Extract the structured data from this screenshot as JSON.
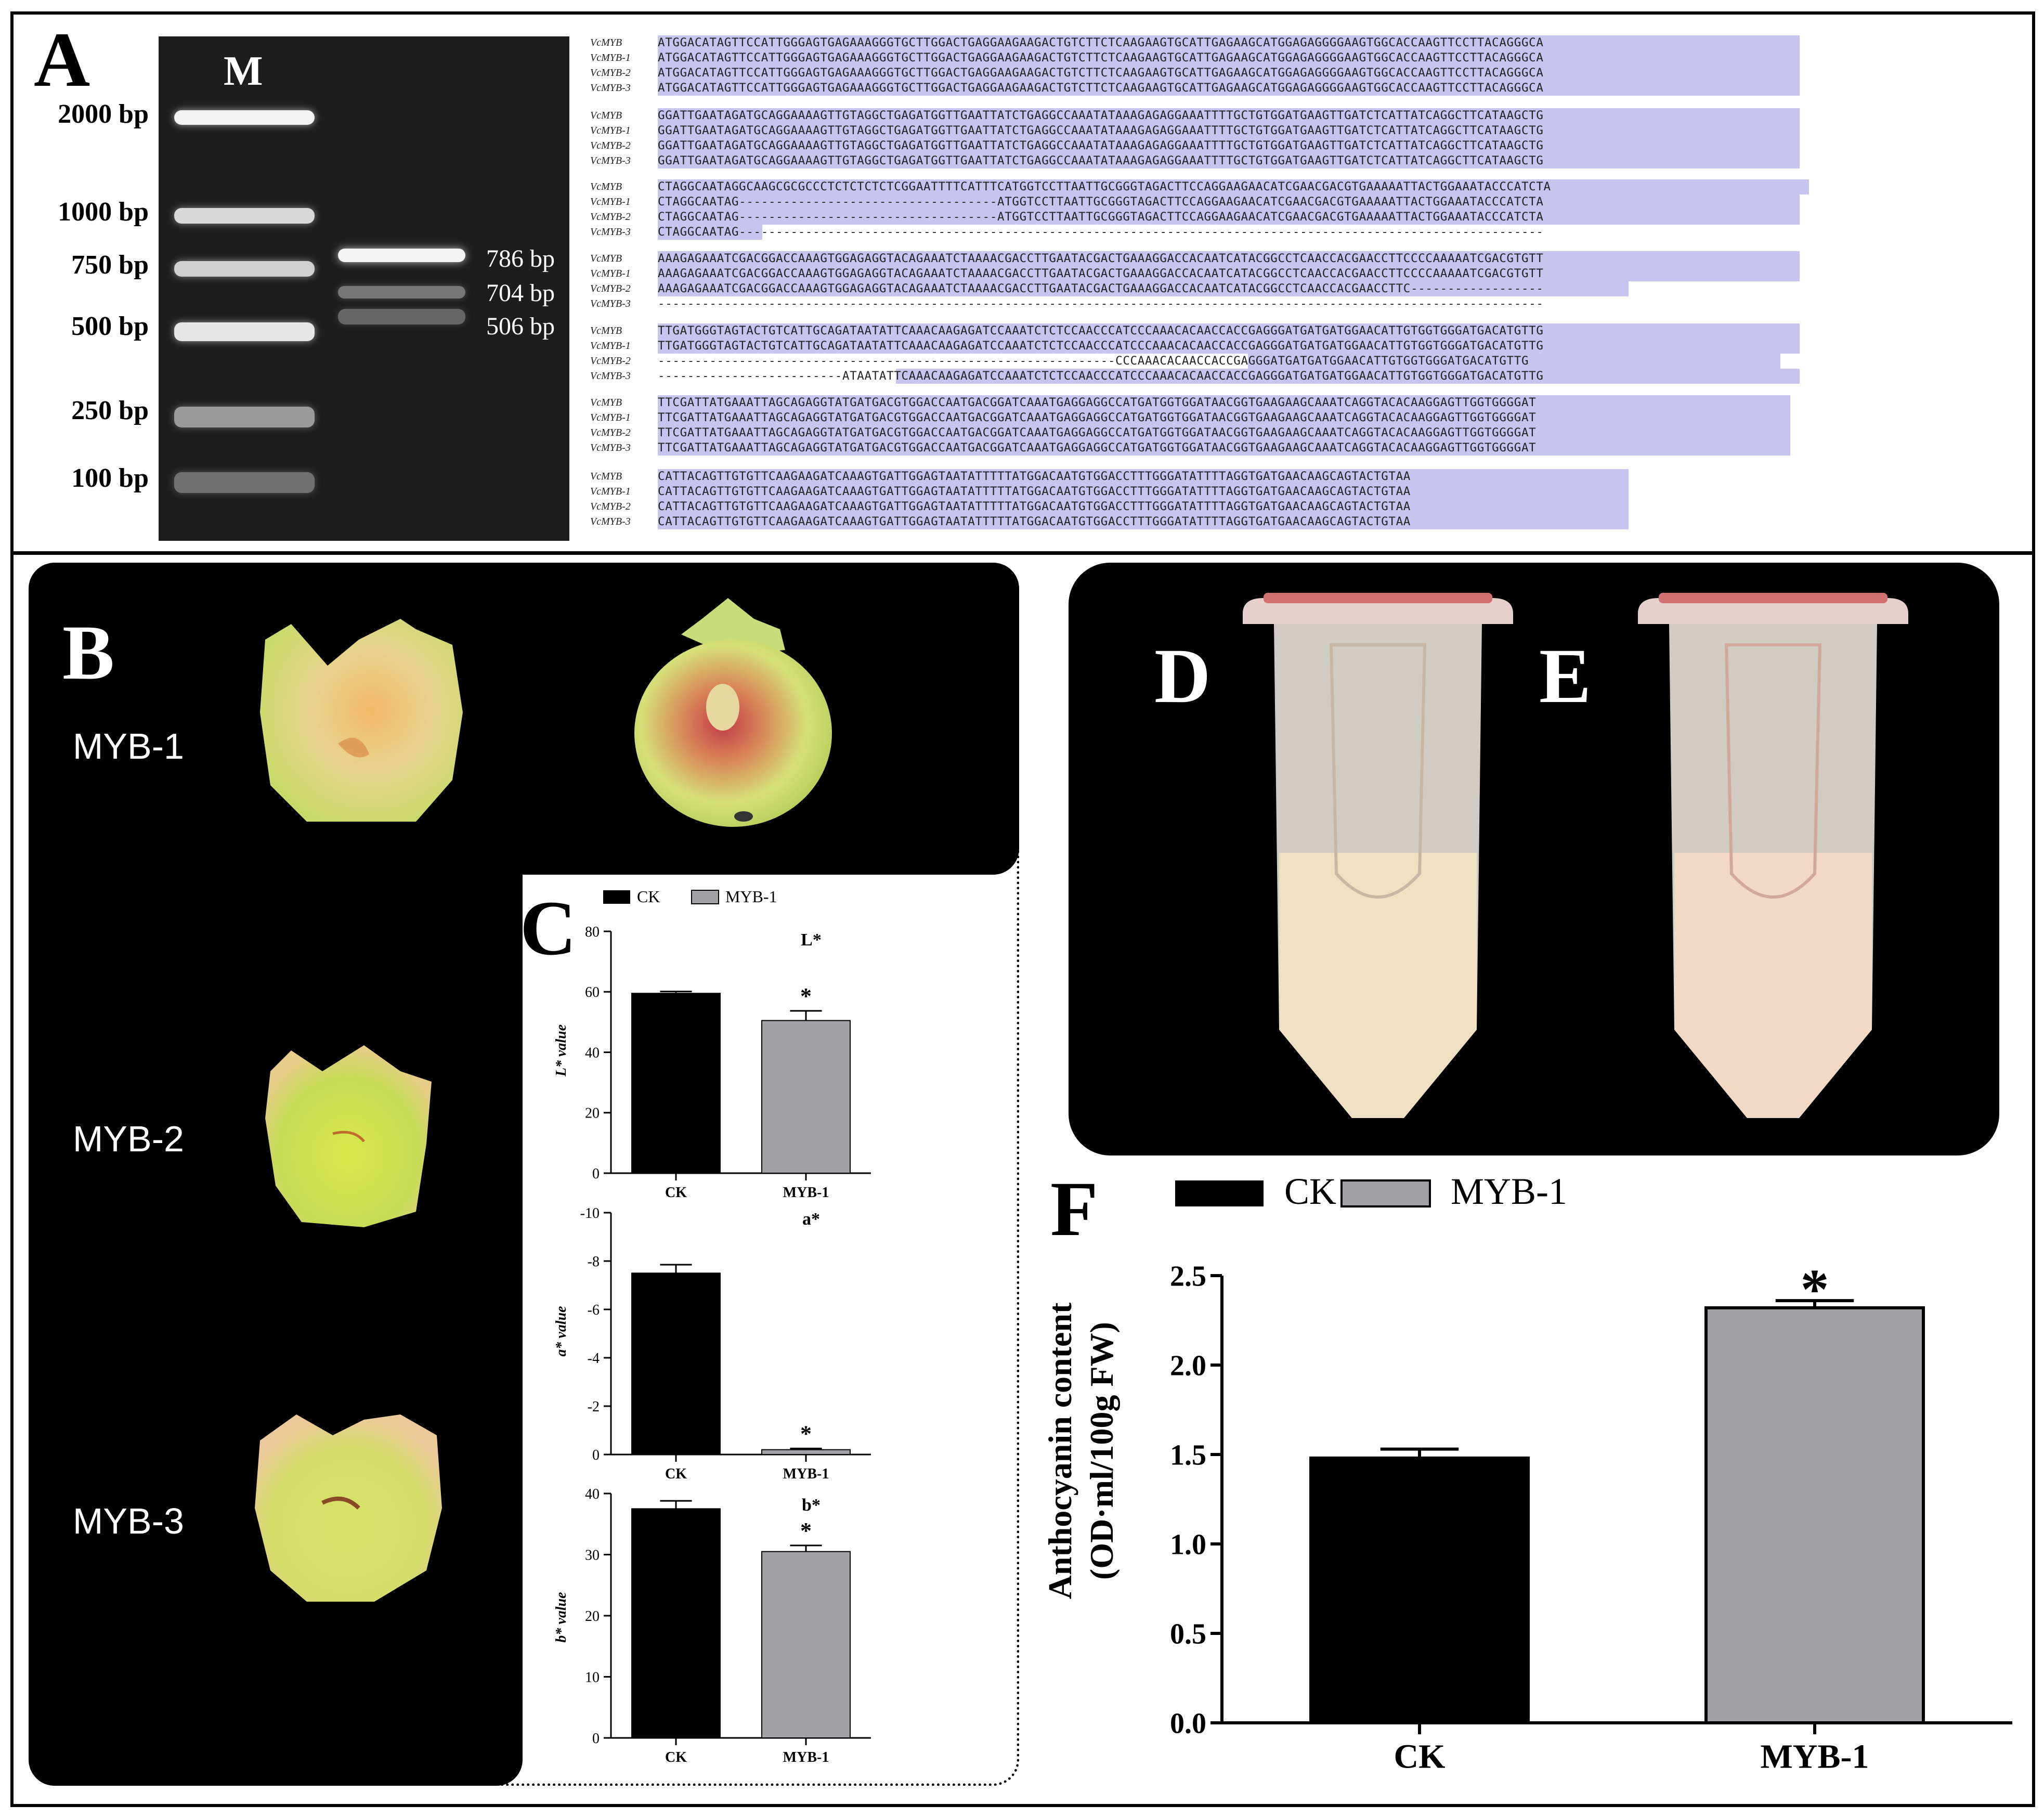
{
  "panels": {
    "A": {
      "label": "A"
    },
    "B": {
      "label": "B",
      "samples": [
        "MYB-1",
        "MYB-2",
        "MYB-3"
      ]
    },
    "C": {
      "label": "C"
    },
    "D": {
      "label": "D"
    },
    "E": {
      "label": "E"
    },
    "F": {
      "label": "F"
    }
  },
  "gel": {
    "marker_lane": "M",
    "ladder": [
      "2000 bp",
      "1000 bp",
      "750 bp",
      "500 bp",
      "250 bp",
      "100 bp"
    ],
    "bands": [
      "786 bp",
      "704 bp",
      "506 bp"
    ]
  },
  "alignment": {
    "names": [
      "VcMYB",
      "VcMYB-1",
      "VcMYB-2",
      "VcMYB-3"
    ],
    "blocks": [
      [
        "ATGGACATAGTTCCATTGGGAGTGAGAAAGGGTGCTTGGACTGAGGAAGAAGACTGTCTTCTCAAGAAGTGCATTGAGAAGCATGGAGAGGGGAAGTGGCACCAAGTTCCTTACAGGGCA",
        "ATGGACATAGTTCCATTGGGAGTGAGAAAGGGTGCTTGGACTGAGGAAGAAGACTGTCTTCTCAAGAAGTGCATTGAGAAGCATGGAGAGGGGAAGTGGCACCAAGTTCCTTACAGGGCA",
        "ATGGACATAGTTCCATTGGGAGTGAGAAAGGGTGCTTGGACTGAGGAAGAAGACTGTCTTCTCAAGAAGTGCATTGAGAAGCATGGAGAGGGGAAGTGGCACCAAGTTCCTTACAGGGCA",
        "ATGGACATAGTTCCATTGGGAGTGAGAAAGGGTGCTTGGACTGAGGAAGAAGACTGTCTTCTCAAGAAGTGCATTGAGAAGCATGGAGAGGGGAAGTGGCACCAAGTTCCTTACAGGGCA"
      ],
      [
        "GGATTGAATAGATGCAGGAAAAGTTGTAGGCTGAGATGGTTGAATTATCTGAGGCCAAATATAAAGAGAGGAAATTTTGCTGTGGATGAAGTTGATCTCATTATCAGGCTTCATAAGCTG",
        "GGATTGAATAGATGCAGGAAAAGTTGTAGGCTGAGATGGTTGAATTATCTGAGGCCAAATATAAAGAGAGGAAATTTTGCTGTGGATGAAGTTGATCTCATTATCAGGCTTCATAAGCTG",
        "GGATTGAATAGATGCAGGAAAAGTTGTAGGCTGAGATGGTTGAATTATCTGAGGCCAAATATAAAGAGAGGAAATTTTGCTGTGGATGAAGTTGATCTCATTATCAGGCTTCATAAGCTG",
        "GGATTGAATAGATGCAGGAAAAGTTGTAGGCTGAGATGGTTGAATTATCTGAGGCCAAATATAAAGAGAGGAAATTTTGCTGTGGATGAAGTTGATCTCATTATCAGGCTTCATAAGCTG"
      ],
      [
        "CTAGGCAATAGGCAAGCGCGCCCTCTCTCTCTCGGAATTTTCATTTCATGGTCCTTAATTGCGGGTAGACTTCCAGGAAGAACATCGAACGACGTGAAAAATTACTGGAAATACCCATCTA",
        "CTAGGCAATAG-----------------------------------ATGGTCCTTAATTGCGGGTAGACTTCCAGGAAGAACATCGAACGACGTGAAAAATTACTGGAAATACCCATCTA",
        "CTAGGCAATAG-----------------------------------ATGGTCCTTAATTGCGGGTAGACTTCCAGGAAGAACATCGAACGACGTGAAAAATTACTGGAAATACCCATCTA",
        "CTAGGCAATAG-------------------------------------------------------------------------------------------------------------"
      ],
      [
        "AAAGAGAAATCGACGGACCAAAGTGGAGAGGTACAGAAATCTAAAACGACCTTGAATACGACTGAAAGGACCACAATCATACGGCCTCAACCACGAACCTTCCCCAAAAATCGACGTGTT",
        "AAAGAGAAATCGACGGACCAAAGTGGAGAGGTACAGAAATCTAAAACGACCTTGAATACGACTGAAAGGACCACAATCATACGGCCTCAACCACGAACCTTCCCCAAAAATCGACGTGTT",
        "AAAGAGAAATCGACGGACCAAAGTGGAGAGGTACAGAAATCTAAAACGACCTTGAATACGACTGAAAGGACCACAATCATACGGCCTCAACCACGAACCTTC------------------",
        "------------------------------------------------------------------------------------------------------------------------"
      ],
      [
        "TTGATGGGTAGTACTGTCATTGCAGATAATATTCAAACAAGAGATCCAAATCTCTCCAACCCATCCCAAACACAACCACCGAGGGATGATGATGGAACATTGTGGTGGGATGACATGTTG",
        "TTGATGGGTAGTACTGTCATTGCAGATAATATTCAAACAAGAGATCCAAATCTCTCCAACCCATCCCAAACACAACCACCGAGGGATGATGATGGAACATTGTGGTGGGATGACATGTTG",
        "--------------------------------------------------------------CCCAAACACAACCACCGAGGGATGATGATGGAACATTGTGGTGGGATGACATGTTG",
        "-------------------------ATAATATTCAAACAAGAGATCCAAATCTCTCCAACCCATCCCAAACACAACCACCGAGGGATGATGATGGAACATTGTGGTGGGATGACATGTTG"
      ],
      [
        "TTCGATTATGAAATTAGCAGAGGTATGATGACGTGGACCAATGACGGATCAAATGAGGAGGCCATGATGGTGGATAACGGTGAAGAAGCAAATCAGGTACACAAGGAGTTGGTGGGGAT",
        "TTCGATTATGAAATTAGCAGAGGTATGATGACGTGGACCAATGACGGATCAAATGAGGAGGCCATGATGGTGGATAACGGTGAAGAAGCAAATCAGGTACACAAGGAGTTGGTGGGGAT",
        "TTCGATTATGAAATTAGCAGAGGTATGATGACGTGGACCAATGACGGATCAAATGAGGAGGCCATGATGGTGGATAACGGTGAAGAAGCAAATCAGGTACACAAGGAGTTGGTGGGGAT",
        "TTCGATTATGAAATTAGCAGAGGTATGATGACGTGGACCAATGACGGATCAAATGAGGAGGCCATGATGGTGGATAACGGTGAAGAAGCAAATCAGGTACACAAGGAGTTGGTGGGGAT"
      ],
      [
        "CATTACAGTTGTGTTCAAGAAGATCAAAGTGATTGGAGTAATATTTTTATGGACAATGTGGACCTTTGGGATATTTTAGGTGATGAACAAGCAGTACTGTAA",
        "CATTACAGTTGTGTTCAAGAAGATCAAAGTGATTGGAGTAATATTTTTATGGACAATGTGGACCTTTGGGATATTTTAGGTGATGAACAAGCAGTACTGTAA",
        "CATTACAGTTGTGTTCAAGAAGATCAAAGTGATTGGAGTAATATTTTTATGGACAATGTGGACCTTTGGGATATTTTAGGTGATGAACAAGCAGTACTGTAA",
        "CATTACAGTTGTGTTCAAGAAGATCAAAGTGATTGGAGTAATATTTTTATGGACAATGTGGACCTTTGGGATATTTTAGGTGATGAACAAGCAGTACTGTAA"
      ]
    ]
  },
  "colors": {
    "ck": "#000000",
    "myb1": "#a2a2a6",
    "highlight": "#c7c4f0"
  },
  "chart_data": [
    {
      "id": "C-L",
      "type": "bar",
      "title": "L*",
      "legend": [
        "CK",
        "MYB-1"
      ],
      "categories": [
        "CK",
        "MYB-1"
      ],
      "values": [
        59.5,
        50.5
      ],
      "errors": [
        0.6,
        3.2
      ],
      "significance": [
        "",
        "*"
      ],
      "ylabel": "L* value",
      "ylim": [
        0,
        80
      ],
      "yticks": [
        "0",
        "20",
        "40",
        "60",
        "80"
      ]
    },
    {
      "id": "C-a",
      "type": "bar",
      "title": "a*",
      "categories": [
        "CK",
        "MYB-1"
      ],
      "values": [
        -7.5,
        -0.2
      ],
      "errors": [
        0.35,
        0.05
      ],
      "significance": [
        "",
        "*"
      ],
      "ylabel": "a* value",
      "ylim": [
        0,
        -10
      ],
      "yticks": [
        "0",
        "-2",
        "-4",
        "-6",
        "-8",
        "-10"
      ]
    },
    {
      "id": "C-b",
      "type": "bar",
      "title": "b*",
      "categories": [
        "CK",
        "MYB-1"
      ],
      "values": [
        37.5,
        30.5
      ],
      "errors": [
        1.3,
        1.0
      ],
      "significance": [
        "",
        "*"
      ],
      "ylabel": "b* value",
      "ylim": [
        0,
        40
      ],
      "yticks": [
        "0",
        "10",
        "20",
        "30",
        "40"
      ]
    },
    {
      "id": "F",
      "type": "bar",
      "legend": [
        "CK",
        "MYB-1"
      ],
      "categories": [
        "CK",
        "MYB-1"
      ],
      "values": [
        1.48,
        2.32
      ],
      "errors": [
        0.05,
        0.04
      ],
      "significance": [
        "",
        "*"
      ],
      "ylabel": "Anthocyanin content",
      "ylabel2": "(OD·ml/100g FW)",
      "ylim": [
        0,
        2.5
      ],
      "yticks": [
        "0.0",
        "0.5",
        "1.0",
        "1.5",
        "2.0",
        "2.5"
      ]
    }
  ]
}
